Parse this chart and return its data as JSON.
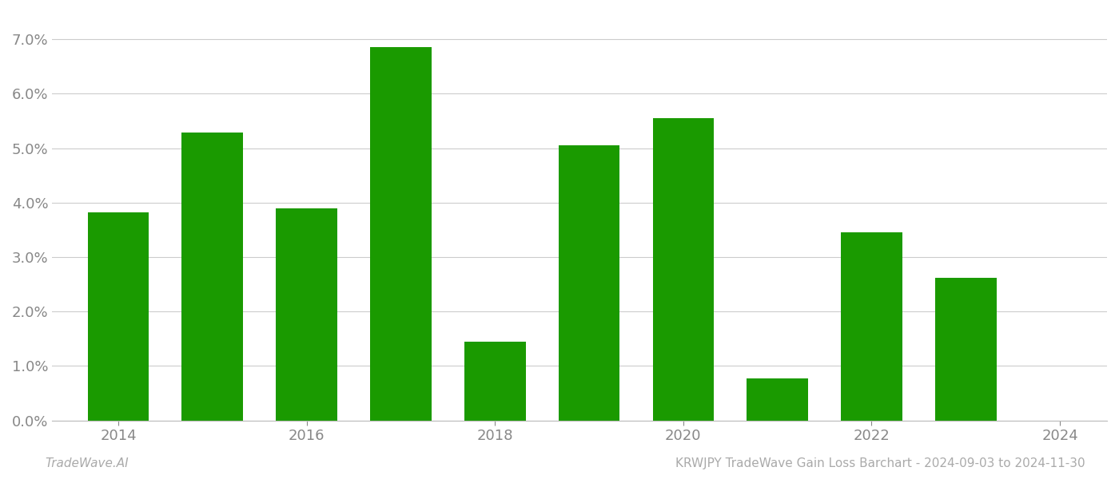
{
  "years": [
    2014,
    2015,
    2016,
    2017,
    2018,
    2019,
    2020,
    2021,
    2022,
    2023
  ],
  "values": [
    0.0382,
    0.0528,
    0.039,
    0.0685,
    0.0145,
    0.0505,
    0.0555,
    0.0077,
    0.0345,
    0.0262
  ],
  "bar_color": "#1a9a00",
  "background_color": "#ffffff",
  "grid_color": "#cccccc",
  "ylim": [
    0.0,
    0.075
  ],
  "yticks": [
    0.0,
    0.01,
    0.02,
    0.03,
    0.04,
    0.05,
    0.06,
    0.07
  ],
  "xticks": [
    2014,
    2016,
    2018,
    2020,
    2022,
    2024
  ],
  "xlim": [
    2013.3,
    2024.5
  ],
  "xlabel": "",
  "ylabel": "",
  "title": "",
  "footer_left": "TradeWave.AI",
  "footer_right": "KRWJPY TradeWave Gain Loss Barchart - 2024-09-03 to 2024-11-30",
  "footer_color": "#aaaaaa",
  "footer_fontsize": 11,
  "bar_width": 0.65,
  "tick_fontsize": 13,
  "spine_color": "#bbbbbb"
}
